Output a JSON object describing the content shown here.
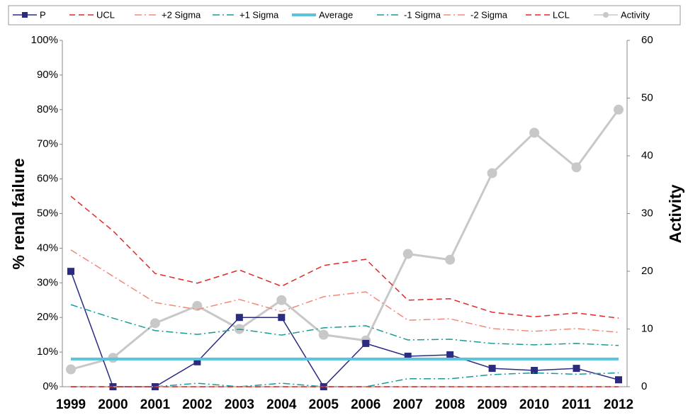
{
  "chart_data": {
    "type": "line",
    "y_label": "% renal failure",
    "y2_label": "Activity",
    "categories": [
      "1999",
      "2000",
      "2001",
      "2002",
      "2003",
      "2004",
      "2005",
      "2006",
      "2007",
      "2008",
      "2009",
      "2010",
      "2011",
      "2012"
    ],
    "ylim": [
      0,
      100
    ],
    "yticks": [
      {
        "value": 0,
        "label": "0%"
      },
      {
        "value": 10,
        "label": "10%"
      },
      {
        "value": 20,
        "label": "20%"
      },
      {
        "value": 30,
        "label": "30%"
      },
      {
        "value": 40,
        "label": "40%"
      },
      {
        "value": 50,
        "label": "50%"
      },
      {
        "value": 60,
        "label": "60%"
      },
      {
        "value": 70,
        "label": "70%"
      },
      {
        "value": 80,
        "label": "80%"
      },
      {
        "value": 90,
        "label": "90%"
      },
      {
        "value": 100,
        "label": "100%"
      }
    ],
    "y2lim": [
      0,
      60
    ],
    "y2ticks": [
      0,
      10,
      20,
      30,
      40,
      50,
      60
    ],
    "grid": false,
    "legend": "top",
    "series": [
      {
        "name": "P",
        "color": "#2b2b80",
        "dash": "solid",
        "marker": "square",
        "values": [
          33.3,
          0,
          0,
          7.2,
          20,
          20,
          0,
          12.5,
          8.8,
          9.2,
          5.3,
          4.7,
          5.3,
          2
        ]
      },
      {
        "name": "UCL",
        "color": "#e0282a",
        "dash": "dashed",
        "marker": "none",
        "values": [
          55,
          45,
          32.7,
          29.9,
          33.7,
          29,
          35,
          36.8,
          25,
          25.4,
          21.5,
          20.2,
          21.3,
          19.8
        ]
      },
      {
        "name": "+2 Sigma",
        "color": "#f08a78",
        "dash": "dashdot",
        "marker": "none",
        "values": [
          39.5,
          31.9,
          24.3,
          22.3,
          25.2,
          21.7,
          26,
          27.4,
          19.2,
          19.6,
          16.8,
          16,
          16.8,
          15.7
        ]
      },
      {
        "name": "+1 Sigma",
        "color": "#1a9a9a",
        "dash": "dashdot",
        "marker": "none",
        "values": [
          23.7,
          19.8,
          16.2,
          15.1,
          16.6,
          14.9,
          17,
          17.6,
          13.5,
          13.7,
          12.5,
          12.1,
          12.5,
          11.9
        ]
      },
      {
        "name": "Average",
        "color": "#5bc3dc",
        "dash": "thick",
        "marker": "none",
        "values": [
          8,
          8,
          8,
          8,
          8,
          8,
          8,
          8,
          8,
          8,
          8,
          8,
          8,
          8
        ]
      },
      {
        "name": "-1 Sigma",
        "color": "#1a9a9a",
        "dash": "dashdot",
        "marker": "none",
        "values": [
          0,
          0,
          0,
          1,
          0,
          1,
          0,
          0,
          2.3,
          2.3,
          3.5,
          4,
          3.6,
          4
        ]
      },
      {
        "name": "-2 Sigma",
        "color": "#f08a78",
        "dash": "dashdot",
        "marker": "none",
        "values": [
          0,
          0,
          0,
          0,
          0,
          0,
          0,
          0,
          0,
          0,
          0,
          0,
          0,
          0
        ]
      },
      {
        "name": "LCL",
        "color": "#e0282a",
        "dash": "dashed",
        "marker": "none",
        "values": [
          0,
          0,
          0,
          0,
          0,
          0,
          0,
          0,
          0,
          0,
          0,
          0,
          0,
          0
        ]
      },
      {
        "name": "Activity",
        "color": "#c8c8c8",
        "dash": "solid",
        "marker": "circle",
        "axis": "y2",
        "values": [
          3,
          5,
          11,
          14,
          10,
          15,
          9,
          8,
          23,
          22,
          37,
          44,
          38,
          48
        ]
      }
    ]
  }
}
